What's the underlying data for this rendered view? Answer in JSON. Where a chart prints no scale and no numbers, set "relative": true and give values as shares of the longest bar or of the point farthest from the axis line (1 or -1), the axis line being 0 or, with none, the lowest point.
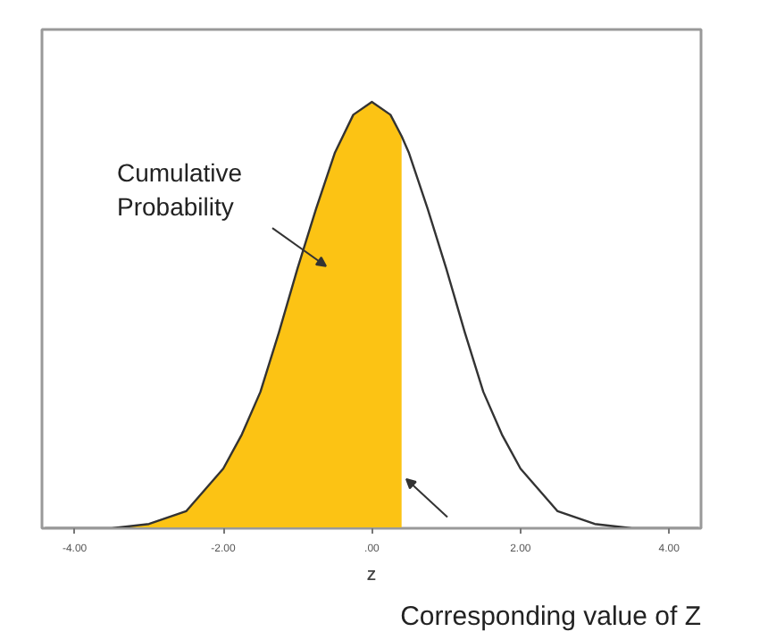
{
  "chart_data": {
    "type": "line",
    "relative": true,
    "xlabel": "Z",
    "xlim": [
      -4.44,
      4.43
    ],
    "xticks": [
      {
        "value": -4,
        "label": "-4.00"
      },
      {
        "value": -2,
        "label": "-2.00"
      },
      {
        "value": 0,
        "label": ".00"
      },
      {
        "value": 2,
        "label": "2.00"
      },
      {
        "value": 4,
        "label": "4.00"
      }
    ],
    "grid": false,
    "line_style": "solid",
    "marker": "none",
    "series": [
      {
        "color": "#333333",
        "x": [
          -4.4,
          -4,
          -3.5,
          -3,
          -2.5,
          -2,
          -1.75,
          -1.5,
          -1.25,
          -1,
          -0.75,
          -0.5,
          -0.25,
          0,
          0.25,
          0.4,
          0.5,
          0.75,
          1,
          1.25,
          1.5,
          1.75,
          2,
          2.5,
          3,
          3.5,
          4,
          4.4
        ],
        "values": [
          0,
          0,
          0,
          0.01,
          0.04,
          0.14,
          0.22,
          0.32,
          0.46,
          0.61,
          0.75,
          0.88,
          0.97,
          1,
          0.97,
          0.92,
          0.88,
          0.75,
          0.61,
          0.46,
          0.32,
          0.22,
          0.14,
          0.04,
          0.01,
          0,
          0,
          0
        ]
      },
      {
        "type": "area",
        "color": "#fcc314",
        "x": [
          -4.4,
          -4,
          -3.5,
          -3,
          -2.5,
          -2,
          -1.75,
          -1.5,
          -1.25,
          -1,
          -0.75,
          -0.5,
          -0.25,
          0,
          0.25,
          0.4
        ],
        "values": [
          0,
          0,
          0,
          0.01,
          0.04,
          0.14,
          0.22,
          0.32,
          0.46,
          0.61,
          0.75,
          0.88,
          0.97,
          1,
          0.97,
          0.92
        ]
      }
    ],
    "annotations": [
      "Cumulative\nProbability",
      "Corresponding value of Z"
    ]
  }
}
